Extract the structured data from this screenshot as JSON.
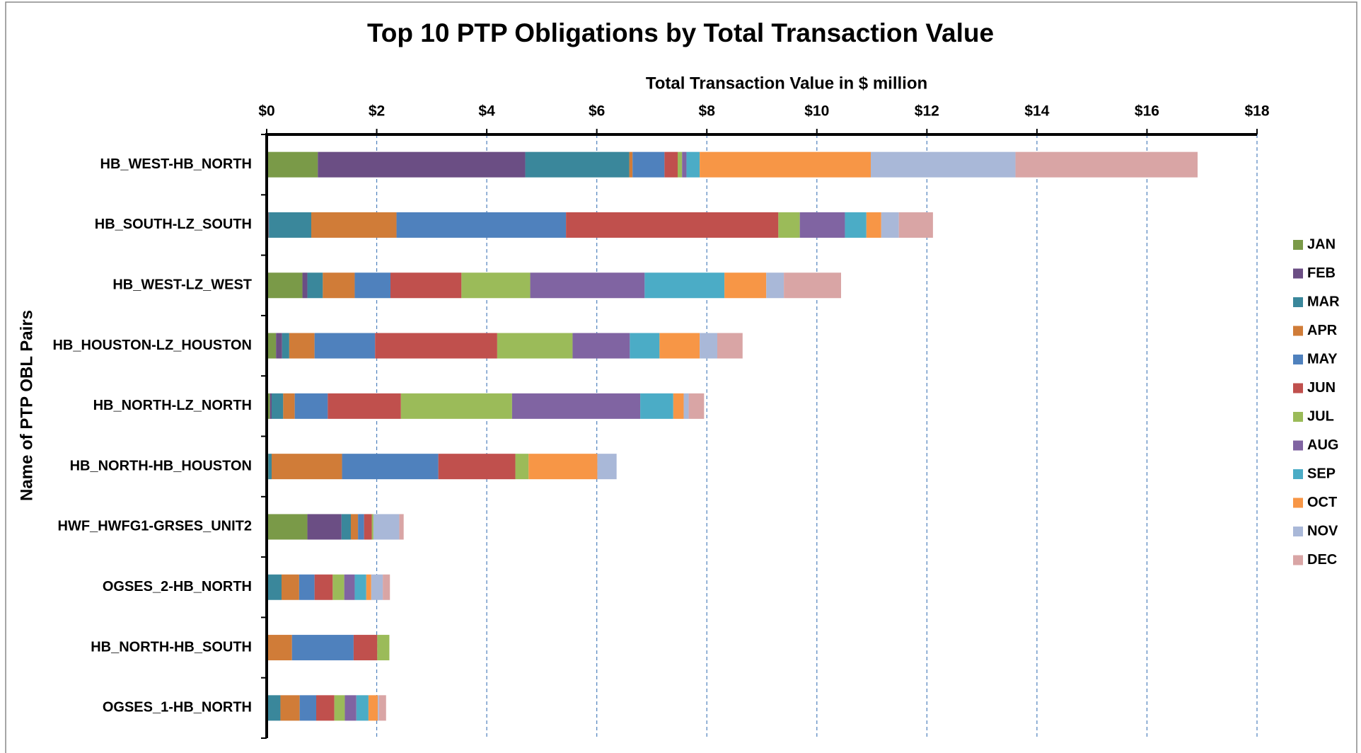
{
  "chart_data": {
    "type": "stacked-barh",
    "title": "Top 10 PTP Obligations by Total Transaction Value",
    "x_label": "Total Transaction Value in $ million",
    "y_label": "Name of PTP OBL Pairs",
    "categories": [
      "HB_WEST-HB_NORTH",
      "HB_SOUTH-LZ_SOUTH",
      "HB_WEST-LZ_WEST",
      "HB_HOUSTON-LZ_HOUSTON",
      "HB_NORTH-LZ_NORTH",
      "HB_NORTH-HB_HOUSTON",
      "HWF_HWFG1-GRSES_UNIT2",
      "OGSES_2-HB_NORTH",
      "HB_NORTH-HB_SOUTH",
      "OGSES_1-HB_NORTH"
    ],
    "xlim": [
      0,
      18
    ],
    "xticks": [
      {
        "value": 0,
        "label": "$0"
      },
      {
        "value": 2,
        "label": "$2"
      },
      {
        "value": 4,
        "label": "$4"
      },
      {
        "value": 6,
        "label": "$6"
      },
      {
        "value": 8,
        "label": "$8"
      },
      {
        "value": 10,
        "label": "$10"
      },
      {
        "value": 12,
        "label": "$12"
      },
      {
        "value": 14,
        "label": "$14"
      },
      {
        "value": 16,
        "label": "$16"
      },
      {
        "value": 18,
        "label": "$18"
      }
    ],
    "grid": true,
    "legend": "right",
    "series": [
      {
        "name": "JAN",
        "color": "#7a9a48",
        "values": [
          0.93,
          0.03,
          0.65,
          0.17,
          0.06,
          0.03,
          0.74,
          0,
          0,
          0
        ]
      },
      {
        "name": "FEB",
        "color": "#6b4e84",
        "values": [
          3.77,
          0.01,
          0.09,
          0.11,
          0.03,
          0,
          0.62,
          0,
          0,
          0
        ]
      },
      {
        "name": "MAR",
        "color": "#3a879b",
        "values": [
          1.89,
          0.77,
          0.28,
          0.13,
          0.21,
          0.06,
          0.17,
          0.27,
          0,
          0.25
        ]
      },
      {
        "name": "APR",
        "color": "#d07c38",
        "values": [
          0.06,
          1.55,
          0.58,
          0.46,
          0.21,
          1.28,
          0.13,
          0.32,
          0.46,
          0.35
        ]
      },
      {
        "name": "MAY",
        "color": "#4f81bd",
        "values": [
          0.58,
          3.08,
          0.65,
          1.1,
          0.6,
          1.75,
          0.11,
          0.28,
          1.12,
          0.3
        ]
      },
      {
        "name": "JUN",
        "color": "#c0504d",
        "values": [
          0.24,
          3.86,
          1.29,
          2.22,
          1.33,
          1.4,
          0.14,
          0.33,
          0.43,
          0.33
        ]
      },
      {
        "name": "JUL",
        "color": "#9bbb59",
        "values": [
          0.08,
          0.39,
          1.25,
          1.37,
          2.02,
          0.24,
          0.03,
          0.21,
          0.22,
          0.19
        ]
      },
      {
        "name": "AUG",
        "color": "#8064a2",
        "values": [
          0.08,
          0.82,
          2.08,
          1.04,
          2.33,
          0,
          0,
          0.19,
          0,
          0.21
        ]
      },
      {
        "name": "SEP",
        "color": "#4bacc6",
        "values": [
          0.24,
          0.39,
          1.45,
          0.54,
          0.6,
          0,
          0,
          0.21,
          0,
          0.22
        ]
      },
      {
        "name": "OCT",
        "color": "#f79646",
        "values": [
          3.11,
          0.27,
          0.76,
          0.73,
          0.19,
          1.25,
          0,
          0.09,
          0,
          0.17
        ]
      },
      {
        "name": "NOV",
        "color": "#a9b8d8",
        "values": [
          2.63,
          0.32,
          0.32,
          0.32,
          0.09,
          0.35,
          0.47,
          0.21,
          0,
          0.02
        ]
      },
      {
        "name": "DEC",
        "color": "#d9a5a5",
        "values": [
          3.31,
          0.62,
          1.04,
          0.46,
          0.28,
          0,
          0.08,
          0.13,
          0,
          0.13
        ]
      }
    ]
  }
}
